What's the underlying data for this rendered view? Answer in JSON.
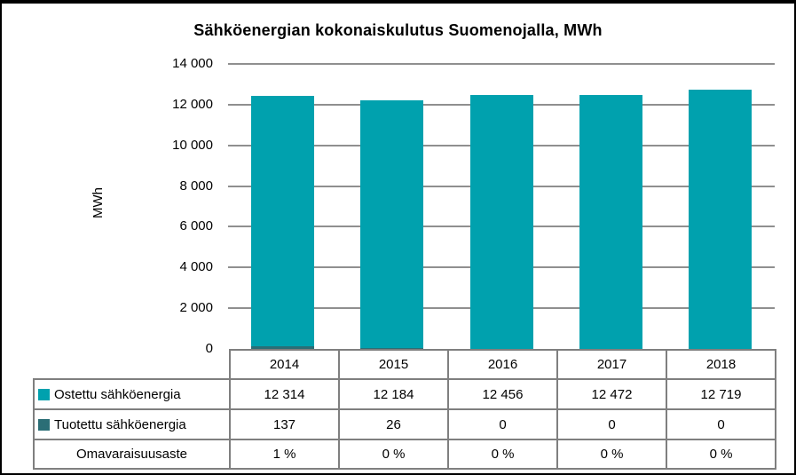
{
  "frame": {
    "background": "#ffffff",
    "border_color": "#000000"
  },
  "chart_data": {
    "type": "bar",
    "stacked": true,
    "title": "Sähköenergian kokonaiskulutus Suomenojalla, MWh",
    "xlabel": "",
    "ylabel": "MWh",
    "categories": [
      "2014",
      "2015",
      "2016",
      "2017",
      "2018"
    ],
    "series": [
      {
        "name": "Ostettu sähköenergia",
        "values": [
          12314,
          12184,
          12456,
          12472,
          12719
        ],
        "color": "#00A1AE"
      },
      {
        "name": "Tuotettu sähköenergia",
        "values": [
          137,
          26,
          0,
          0,
          0
        ],
        "color": "#2B6E76"
      }
    ],
    "ylim": [
      0,
      14000
    ],
    "ytick_step": 2000,
    "yticks": [
      {
        "value": 14000,
        "label": "14 000"
      },
      {
        "value": 12000,
        "label": "12 000"
      },
      {
        "value": 10000,
        "label": "10 000"
      },
      {
        "value": 8000,
        "label": "8 000"
      },
      {
        "value": 6000,
        "label": "6 000"
      },
      {
        "value": 4000,
        "label": "4 000"
      },
      {
        "value": 2000,
        "label": "2 000"
      },
      {
        "value": 0,
        "label": "0"
      }
    ],
    "grid": true,
    "gridline_color": "#8F8F8F",
    "legend_position": "table-rows"
  },
  "table": {
    "border_color": "#7F7F7F",
    "columns": [
      "2014",
      "2015",
      "2016",
      "2017",
      "2018"
    ],
    "rows": [
      {
        "label": "Ostettu sähköenergia",
        "swatch": "#00A1AE",
        "values": [
          "12 314",
          "12 184",
          "12 456",
          "12 472",
          "12 719"
        ]
      },
      {
        "label": "Tuotettu sähköenergia",
        "swatch": "#2B6E76",
        "values": [
          "137",
          "26",
          "0",
          "0",
          "0"
        ]
      },
      {
        "label": "Omavaraisuusaste",
        "swatch": null,
        "values": [
          "1 %",
          "0 %",
          "0 %",
          "0 %",
          "0 %"
        ]
      }
    ]
  }
}
